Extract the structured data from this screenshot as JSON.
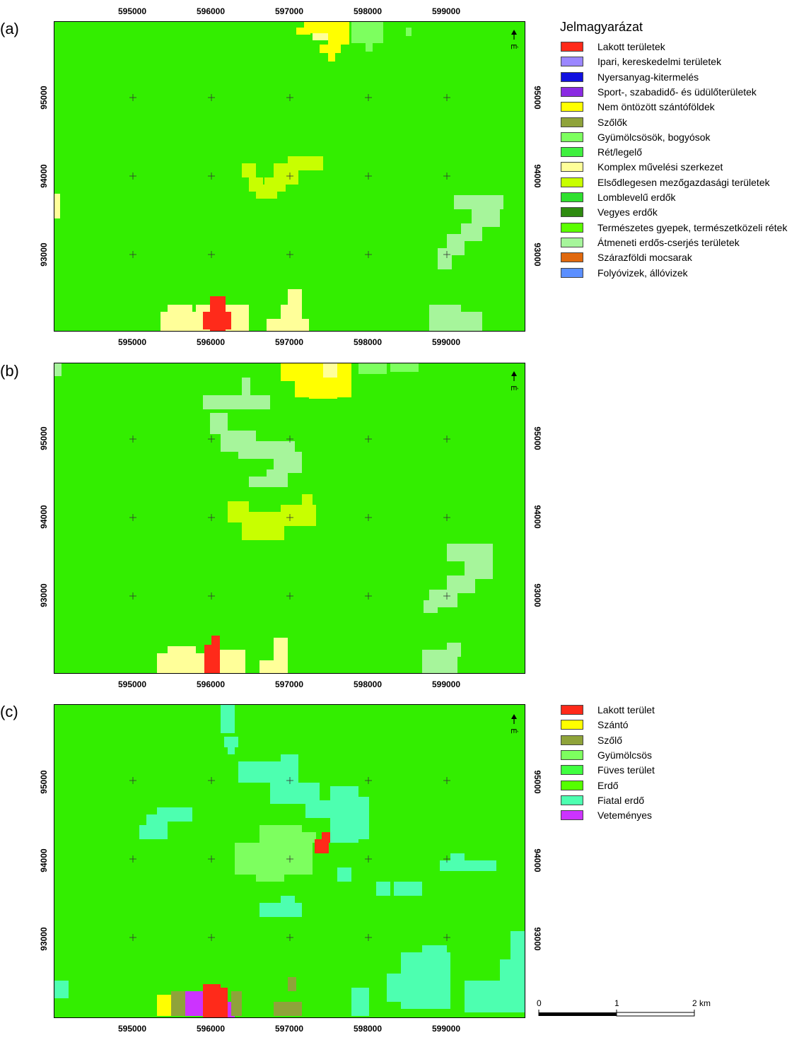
{
  "colors": {
    "background_green": "#33ee00",
    "lakott": "#ff2a1a",
    "ipari": "#9b87ff",
    "nyersanyag": "#1010e0",
    "sport": "#8a2be2",
    "nem_ontozott": "#ffff00",
    "szolok": "#8fa33a",
    "gyumolcs": "#7dff5f",
    "ret": "#3ff03f",
    "komplex": "#ffff99",
    "elsodleges": "#c8ff00",
    "lomblevelu": "#2fe02f",
    "vegyes": "#2e8b10",
    "termeszetes": "#5cff00",
    "atmeneti": "#a6f59b",
    "mocsar": "#e0680e",
    "folyo": "#5b8fff",
    "fuves": "#40ff40",
    "erdo": "#55ff00",
    "fiatal_erdo": "#4dffb0",
    "vetemenyes": "#cc33ff"
  },
  "panels": [
    {
      "label": "(a)",
      "key": "a"
    },
    {
      "label": "(b)",
      "key": "b"
    },
    {
      "label": "(c)",
      "key": "c"
    }
  ],
  "axes": {
    "x_ticks": [
      "595000",
      "596000",
      "597000",
      "598000",
      "599000"
    ],
    "y_ticks": [
      "95000",
      "94000",
      "93000"
    ]
  },
  "north_arrow": {
    "label": "É"
  },
  "legend_corine": {
    "title": "Jelmagyarázat",
    "items": [
      {
        "label": "Lakott területek",
        "color": "#ff2a1a"
      },
      {
        "label": "Ipari, kereskedelmi területek",
        "color": "#9b87ff"
      },
      {
        "label": "Nyersanyag-kitermelés",
        "color": "#1010e0"
      },
      {
        "label": "Sport-, szabadidő- és üdülőterületek",
        "color": "#8a2be2"
      },
      {
        "label": "Nem öntözött szántóföldek",
        "color": "#ffff00"
      },
      {
        "label": "Szőlők",
        "color": "#8fa33a"
      },
      {
        "label": "Gyümölcsösök, bogyósok",
        "color": "#7dff5f"
      },
      {
        "label": "Rét/legelő",
        "color": "#3ff03f"
      },
      {
        "label": "Komplex művelési szerkezet",
        "color": "#ffff99"
      },
      {
        "label": "Elsődlegesen mezőgazdasági területek",
        "color": "#c8ff00"
      },
      {
        "label": "Lomblevelű erdők",
        "color": "#2fe02f"
      },
      {
        "label": "Vegyes erdők",
        "color": "#2e8b10"
      },
      {
        "label": "Természetes gyepek, természetközeli rétek",
        "color": "#5cff00"
      },
      {
        "label": "Átmeneti erdős-cserjés területek",
        "color": "#a6f59b"
      },
      {
        "label": "Szárazföldi mocsarak",
        "color": "#e0680e"
      },
      {
        "label": "Folyóvizek, állóvizek",
        "color": "#5b8fff"
      }
    ]
  },
  "legend_c": {
    "items": [
      {
        "label": "Lakott terület",
        "color": "#ff2a1a"
      },
      {
        "label": "Szántó",
        "color": "#ffff00"
      },
      {
        "label": "Szőlő",
        "color": "#8fa33a"
      },
      {
        "label": "Gyümölcsös",
        "color": "#7dff5f"
      },
      {
        "label": "Füves terület",
        "color": "#40ff40"
      },
      {
        "label": "Erdő",
        "color": "#55ff00"
      },
      {
        "label": "Fiatal erdő",
        "color": "#4dffb0"
      },
      {
        "label": "Veteményes",
        "color": "#cc33ff"
      }
    ]
  },
  "scale_bar": {
    "labels": [
      "0",
      "1",
      "2 km"
    ]
  }
}
